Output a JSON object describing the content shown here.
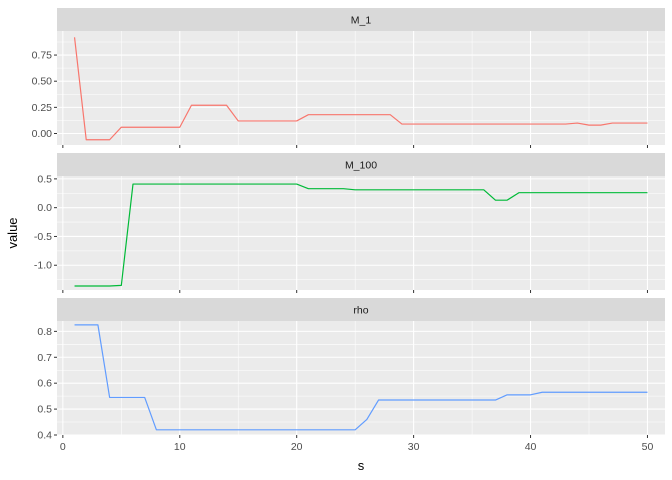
{
  "chart_data": {
    "type": "line",
    "xlabel": "s",
    "ylabel": "value",
    "xlim": [
      -0.5,
      51.5
    ],
    "x_major_ticks": [
      0,
      10,
      20,
      30,
      40,
      50
    ],
    "x_minor_ticks": [
      5,
      15,
      25,
      35,
      45
    ],
    "x_tick_labels": [
      "0",
      "10",
      "20",
      "30",
      "40",
      "50"
    ],
    "grid": true,
    "legend": "none",
    "panels": [
      {
        "name": "M_1",
        "color": "#F8766D",
        "ylim": [
          -0.11,
          0.98
        ],
        "y_major_ticks": [
          0.0,
          0.25,
          0.5,
          0.75
        ],
        "y_tick_labels": [
          "0.00",
          "0.25",
          "0.50",
          "0.75"
        ],
        "y_minor_ticks": [
          0.125,
          0.375,
          0.625,
          0.875
        ],
        "x": [
          1,
          2,
          3,
          4,
          5,
          6,
          7,
          8,
          9,
          10,
          11,
          12,
          13,
          14,
          15,
          16,
          17,
          18,
          19,
          20,
          21,
          22,
          23,
          24,
          25,
          26,
          27,
          28,
          29,
          30,
          31,
          32,
          33,
          34,
          35,
          36,
          37,
          38,
          39,
          40,
          41,
          42,
          43,
          44,
          45,
          46,
          47,
          48,
          49,
          50
        ],
        "values": [
          0.92,
          -0.06,
          -0.06,
          -0.06,
          0.06,
          0.06,
          0.06,
          0.06,
          0.06,
          0.06,
          0.27,
          0.27,
          0.27,
          0.27,
          0.12,
          0.12,
          0.12,
          0.12,
          0.12,
          0.12,
          0.18,
          0.18,
          0.18,
          0.18,
          0.18,
          0.18,
          0.18,
          0.18,
          0.09,
          0.09,
          0.09,
          0.09,
          0.09,
          0.09,
          0.09,
          0.09,
          0.09,
          0.09,
          0.09,
          0.09,
          0.09,
          0.09,
          0.09,
          0.1,
          0.08,
          0.08,
          0.1,
          0.1,
          0.1,
          0.1
        ]
      },
      {
        "name": "M_100",
        "color": "#00BA38",
        "ylim": [
          -1.43,
          0.55
        ],
        "y_major_ticks": [
          -1.0,
          -0.5,
          0.0,
          0.5
        ],
        "y_tick_labels": [
          "-1.0",
          "-0.5",
          "0.0",
          "0.5"
        ],
        "y_minor_ticks": [
          -1.25,
          -0.75,
          -0.25,
          0.25
        ],
        "x": [
          1,
          2,
          3,
          4,
          5,
          6,
          7,
          8,
          9,
          10,
          11,
          12,
          13,
          14,
          15,
          16,
          17,
          18,
          19,
          20,
          21,
          22,
          23,
          24,
          25,
          26,
          27,
          28,
          29,
          30,
          31,
          32,
          33,
          34,
          35,
          36,
          37,
          38,
          39,
          40,
          41,
          42,
          43,
          44,
          45,
          46,
          47,
          48,
          49,
          50
        ],
        "values": [
          -1.36,
          -1.36,
          -1.36,
          -1.36,
          -1.35,
          0.41,
          0.41,
          0.41,
          0.41,
          0.41,
          0.41,
          0.41,
          0.41,
          0.41,
          0.41,
          0.41,
          0.41,
          0.41,
          0.41,
          0.41,
          0.33,
          0.33,
          0.33,
          0.33,
          0.31,
          0.31,
          0.31,
          0.31,
          0.31,
          0.31,
          0.31,
          0.31,
          0.31,
          0.31,
          0.31,
          0.31,
          0.13,
          0.13,
          0.26,
          0.26,
          0.26,
          0.26,
          0.26,
          0.26,
          0.26,
          0.26,
          0.26,
          0.26,
          0.26,
          0.26
        ]
      },
      {
        "name": "rho",
        "color": "#619CFF",
        "ylim": [
          0.4,
          0.84
        ],
        "y_major_ticks": [
          0.4,
          0.5,
          0.6,
          0.7,
          0.8
        ],
        "y_tick_labels": [
          "0.4",
          "0.5",
          "0.6",
          "0.7",
          "0.8"
        ],
        "y_minor_ticks": [
          0.45,
          0.55,
          0.65,
          0.75
        ],
        "x": [
          1,
          2,
          3,
          4,
          5,
          6,
          7,
          8,
          9,
          10,
          11,
          12,
          13,
          14,
          15,
          16,
          17,
          18,
          19,
          20,
          21,
          22,
          23,
          24,
          25,
          26,
          27,
          28,
          29,
          30,
          31,
          32,
          33,
          34,
          35,
          36,
          37,
          38,
          39,
          40,
          41,
          42,
          43,
          44,
          45,
          46,
          47,
          48,
          49,
          50
        ],
        "values": [
          0.825,
          0.825,
          0.825,
          0.545,
          0.545,
          0.545,
          0.545,
          0.42,
          0.42,
          0.42,
          0.42,
          0.42,
          0.42,
          0.42,
          0.42,
          0.42,
          0.42,
          0.42,
          0.42,
          0.42,
          0.42,
          0.42,
          0.42,
          0.42,
          0.42,
          0.46,
          0.535,
          0.535,
          0.535,
          0.535,
          0.535,
          0.535,
          0.535,
          0.535,
          0.535,
          0.535,
          0.535,
          0.555,
          0.555,
          0.555,
          0.565,
          0.565,
          0.565,
          0.565,
          0.565,
          0.565,
          0.565,
          0.565,
          0.565,
          0.565
        ]
      }
    ]
  }
}
